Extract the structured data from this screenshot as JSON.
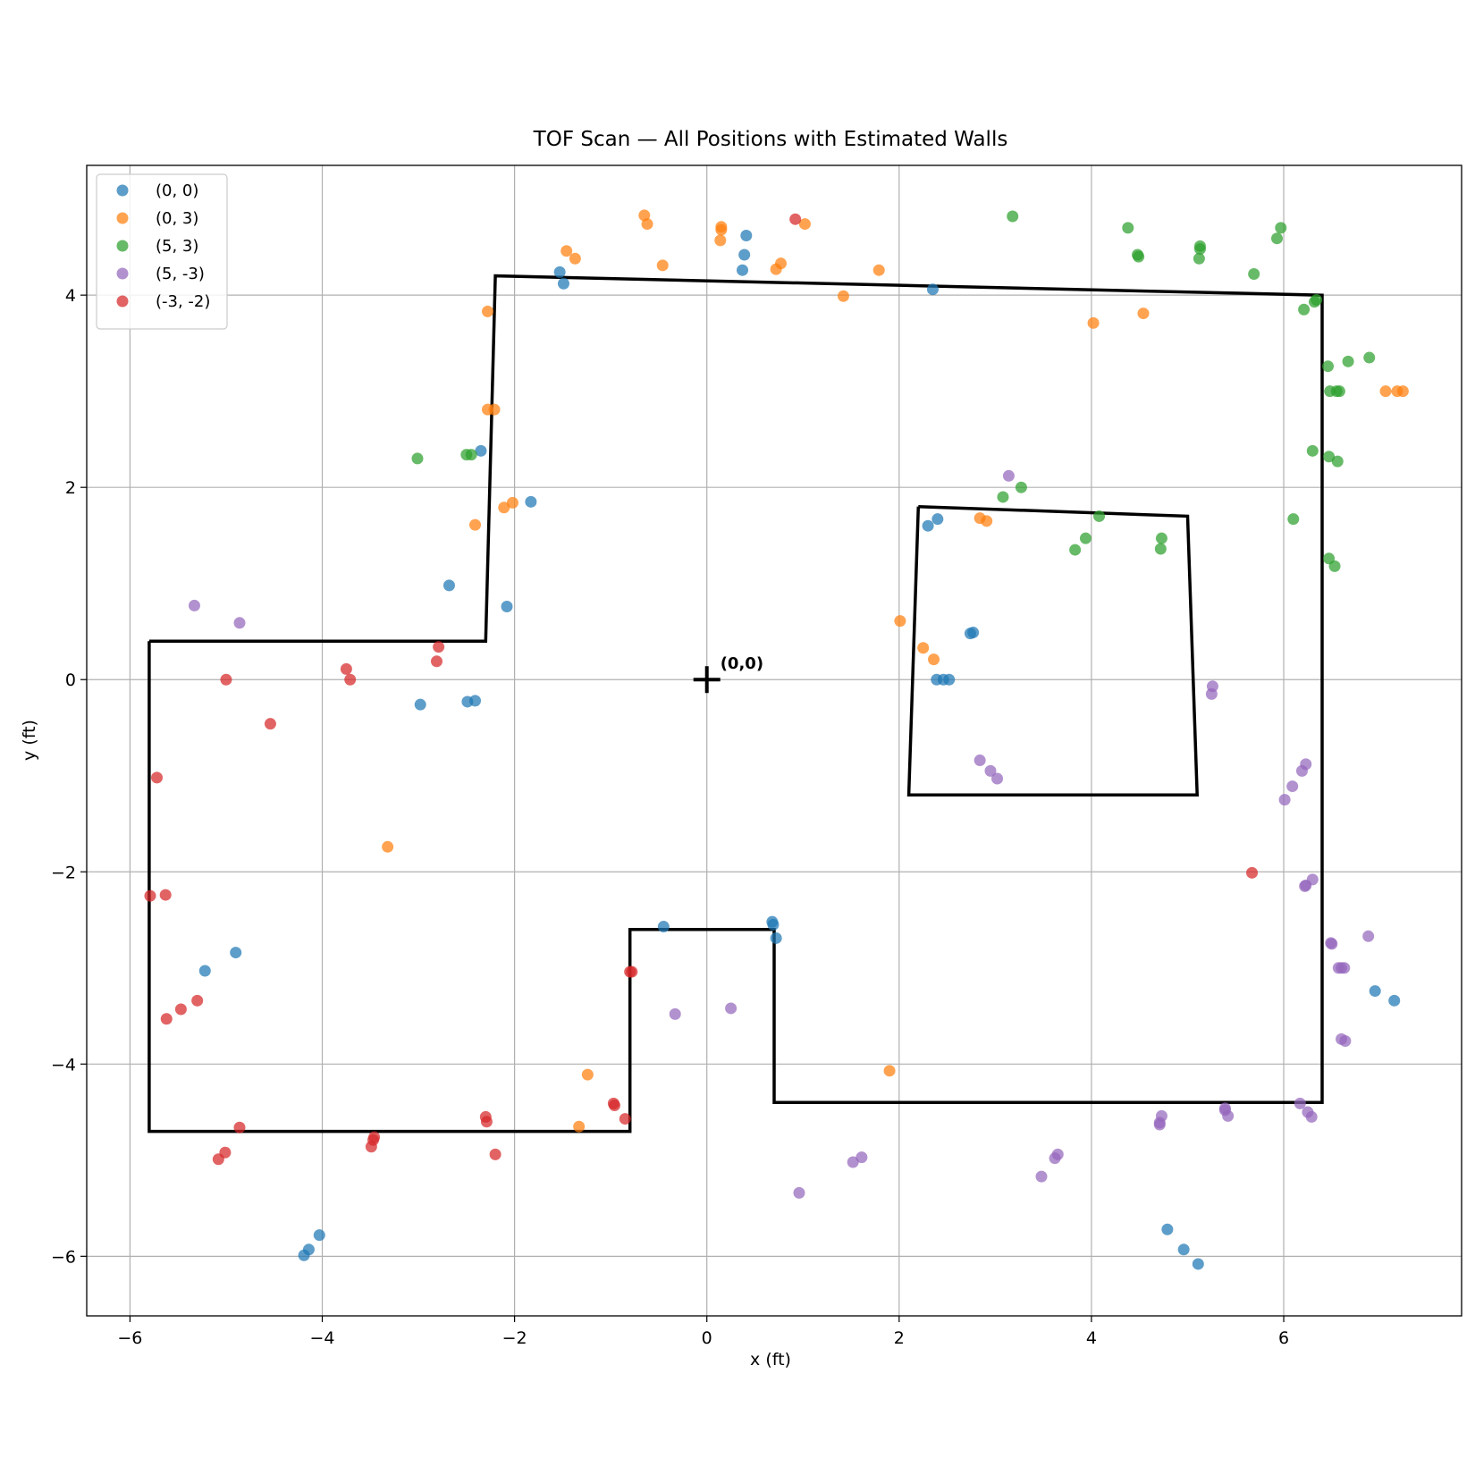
{
  "chart_data": {
    "type": "scatter",
    "title": "TOF Scan — All Positions with Estimated Walls",
    "xlabel": "x (ft)",
    "ylabel": "y (ft)",
    "xlim": [
      -6.45,
      7.85
    ],
    "ylim": [
      -6.62,
      5.35
    ],
    "xticks": [
      -6,
      -4,
      -2,
      0,
      2,
      4,
      6
    ],
    "yticks": [
      -6,
      -4,
      -2,
      0,
      2,
      4
    ],
    "grid": true,
    "legend_position": "upper-left",
    "origin_marker": {
      "x": 0,
      "y": 0,
      "label": "(0,0)"
    },
    "walls": [
      [
        [
          -5.8,
          0.4
        ],
        [
          -2.3,
          0.4
        ],
        [
          -2.2,
          4.2
        ],
        [
          6.4,
          4.0
        ],
        [
          6.4,
          -4.4
        ],
        [
          0.7,
          -4.4
        ],
        [
          0.7,
          -2.6
        ],
        [
          -0.8,
          -2.6
        ],
        [
          -0.8,
          -4.7
        ],
        [
          -5.8,
          -4.7
        ],
        [
          -5.8,
          0.4
        ]
      ],
      [
        [
          2.2,
          1.8
        ],
        [
          5.0,
          1.7
        ],
        [
          5.1,
          -1.2
        ],
        [
          2.1,
          -1.2
        ],
        [
          2.2,
          1.8
        ]
      ]
    ],
    "series": [
      {
        "name": "(0, 0)",
        "color": "#1f77b4",
        "points": [
          [
            -1.53,
            4.24
          ],
          [
            -1.49,
            4.12
          ],
          [
            0.41,
            4.62
          ],
          [
            0.39,
            4.42
          ],
          [
            0.37,
            4.26
          ],
          [
            2.35,
            4.06
          ],
          [
            -2.35,
            2.38
          ],
          [
            -1.83,
            1.85
          ],
          [
            -2.68,
            0.98
          ],
          [
            -2.08,
            0.76
          ],
          [
            2.3,
            1.6
          ],
          [
            2.4,
            1.67
          ],
          [
            2.74,
            0.48
          ],
          [
            2.77,
            0.49
          ],
          [
            2.39,
            0.0
          ],
          [
            2.46,
            0.0
          ],
          [
            2.52,
            0.0
          ],
          [
            -2.98,
            -0.26
          ],
          [
            -2.49,
            -0.23
          ],
          [
            -2.41,
            -0.22
          ],
          [
            -4.9,
            -2.84
          ],
          [
            -5.22,
            -3.03
          ],
          [
            -0.45,
            -2.57
          ],
          [
            0.68,
            -2.52
          ],
          [
            0.69,
            -2.55
          ],
          [
            0.72,
            -2.69
          ],
          [
            6.95,
            -3.24
          ],
          [
            7.15,
            -3.34
          ],
          [
            -4.03,
            -5.78
          ],
          [
            -4.14,
            -5.93
          ],
          [
            -4.19,
            -5.99
          ],
          [
            4.79,
            -5.72
          ],
          [
            4.96,
            -5.93
          ],
          [
            5.11,
            -6.08
          ]
        ]
      },
      {
        "name": "(0, 3)",
        "color": "#ff7f0e",
        "points": [
          [
            -1.46,
            4.46
          ],
          [
            -1.37,
            4.38
          ],
          [
            -0.65,
            4.83
          ],
          [
            -0.62,
            4.74
          ],
          [
            -0.46,
            4.31
          ],
          [
            0.15,
            4.71
          ],
          [
            0.15,
            4.68
          ],
          [
            0.14,
            4.57
          ],
          [
            0.72,
            4.27
          ],
          [
            0.77,
            4.33
          ],
          [
            1.02,
            4.74
          ],
          [
            1.42,
            3.99
          ],
          [
            1.79,
            4.26
          ],
          [
            4.02,
            3.71
          ],
          [
            4.54,
            3.81
          ],
          [
            7.06,
            3.0
          ],
          [
            7.18,
            3.0
          ],
          [
            7.24,
            3.0
          ],
          [
            -2.28,
            3.83
          ],
          [
            -2.28,
            2.81
          ],
          [
            -2.21,
            2.81
          ],
          [
            -2.41,
            1.61
          ],
          [
            -2.11,
            1.79
          ],
          [
            -2.02,
            1.84
          ],
          [
            2.01,
            0.61
          ],
          [
            2.84,
            1.68
          ],
          [
            2.91,
            1.65
          ],
          [
            2.25,
            0.33
          ],
          [
            2.36,
            0.21
          ],
          [
            -3.32,
            -1.74
          ],
          [
            -1.24,
            -4.11
          ],
          [
            1.9,
            -4.07
          ],
          [
            -1.33,
            -4.65
          ]
        ]
      },
      {
        "name": "(5, 3)",
        "color": "#2ca02c",
        "points": [
          [
            3.18,
            4.82
          ],
          [
            4.38,
            4.7
          ],
          [
            4.48,
            4.42
          ],
          [
            4.49,
            4.4
          ],
          [
            5.13,
            4.51
          ],
          [
            5.13,
            4.48
          ],
          [
            5.12,
            4.38
          ],
          [
            5.69,
            4.22
          ],
          [
            5.97,
            4.7
          ],
          [
            5.93,
            4.59
          ],
          [
            6.21,
            3.85
          ],
          [
            6.32,
            3.93
          ],
          [
            6.34,
            3.95
          ],
          [
            6.46,
            3.26
          ],
          [
            6.48,
            3.0
          ],
          [
            6.55,
            3.0
          ],
          [
            6.58,
            3.0
          ],
          [
            6.67,
            3.31
          ],
          [
            6.89,
            3.35
          ],
          [
            6.3,
            2.38
          ],
          [
            6.47,
            2.32
          ],
          [
            6.56,
            2.27
          ],
          [
            6.1,
            1.67
          ],
          [
            6.47,
            1.26
          ],
          [
            6.53,
            1.18
          ],
          [
            -3.01,
            2.3
          ],
          [
            -2.5,
            2.34
          ],
          [
            -2.45,
            2.34
          ],
          [
            3.08,
            1.9
          ],
          [
            3.27,
            2.0
          ],
          [
            3.94,
            1.47
          ],
          [
            3.83,
            1.35
          ],
          [
            4.08,
            1.7
          ],
          [
            4.73,
            1.47
          ],
          [
            4.72,
            1.36
          ]
        ]
      },
      {
        "name": "(5, -3)",
        "color": "#9467bd",
        "points": [
          [
            -5.33,
            0.77
          ],
          [
            -4.86,
            0.59
          ],
          [
            3.14,
            2.12
          ],
          [
            5.26,
            -0.07
          ],
          [
            5.25,
            -0.15
          ],
          [
            2.84,
            -0.84
          ],
          [
            2.95,
            -0.95
          ],
          [
            3.02,
            -1.03
          ],
          [
            6.23,
            -0.88
          ],
          [
            6.19,
            -0.95
          ],
          [
            6.09,
            -1.11
          ],
          [
            6.01,
            -1.25
          ],
          [
            6.3,
            -2.08
          ],
          [
            6.23,
            -2.14
          ],
          [
            6.22,
            -2.15
          ],
          [
            6.88,
            -2.67
          ],
          [
            6.49,
            -2.74
          ],
          [
            6.5,
            -2.75
          ],
          [
            6.57,
            -3.0
          ],
          [
            6.6,
            -3.0
          ],
          [
            6.63,
            -3.0
          ],
          [
            6.6,
            -3.74
          ],
          [
            6.64,
            -3.76
          ],
          [
            -0.33,
            -3.48
          ],
          [
            0.25,
            -3.42
          ],
          [
            4.73,
            -4.54
          ],
          [
            4.71,
            -4.61
          ],
          [
            4.71,
            -4.63
          ],
          [
            5.39,
            -4.46
          ],
          [
            5.39,
            -4.48
          ],
          [
            5.42,
            -4.54
          ],
          [
            6.17,
            -4.41
          ],
          [
            6.25,
            -4.5
          ],
          [
            6.29,
            -4.55
          ],
          [
            3.65,
            -4.94
          ],
          [
            3.62,
            -4.98
          ],
          [
            3.48,
            -5.17
          ],
          [
            1.52,
            -5.02
          ],
          [
            1.61,
            -4.97
          ],
          [
            0.96,
            -5.34
          ]
        ]
      },
      {
        "name": "(-3, -2)",
        "color": "#d62728",
        "points": [
          [
            0.92,
            4.79
          ],
          [
            -5.0,
            0.0
          ],
          [
            -3.75,
            0.11
          ],
          [
            -3.71,
            0.0
          ],
          [
            -2.79,
            0.34
          ],
          [
            -2.81,
            0.19
          ],
          [
            -4.54,
            -0.46
          ],
          [
            -5.72,
            -1.02
          ],
          [
            -5.79,
            -2.25
          ],
          [
            -5.63,
            -2.24
          ],
          [
            5.67,
            -2.01
          ],
          [
            -5.3,
            -3.34
          ],
          [
            -5.47,
            -3.43
          ],
          [
            -5.62,
            -3.53
          ],
          [
            -0.8,
            -3.04
          ],
          [
            -0.78,
            -3.04
          ],
          [
            -0.97,
            -4.41
          ],
          [
            -0.96,
            -4.43
          ],
          [
            -0.85,
            -4.57
          ],
          [
            -4.86,
            -4.66
          ],
          [
            -5.01,
            -4.92
          ],
          [
            -5.08,
            -4.99
          ],
          [
            -3.46,
            -4.76
          ],
          [
            -3.47,
            -4.79
          ],
          [
            -3.49,
            -4.86
          ],
          [
            -2.3,
            -4.55
          ],
          [
            -2.29,
            -4.6
          ],
          [
            -2.2,
            -4.94
          ]
        ]
      }
    ]
  }
}
